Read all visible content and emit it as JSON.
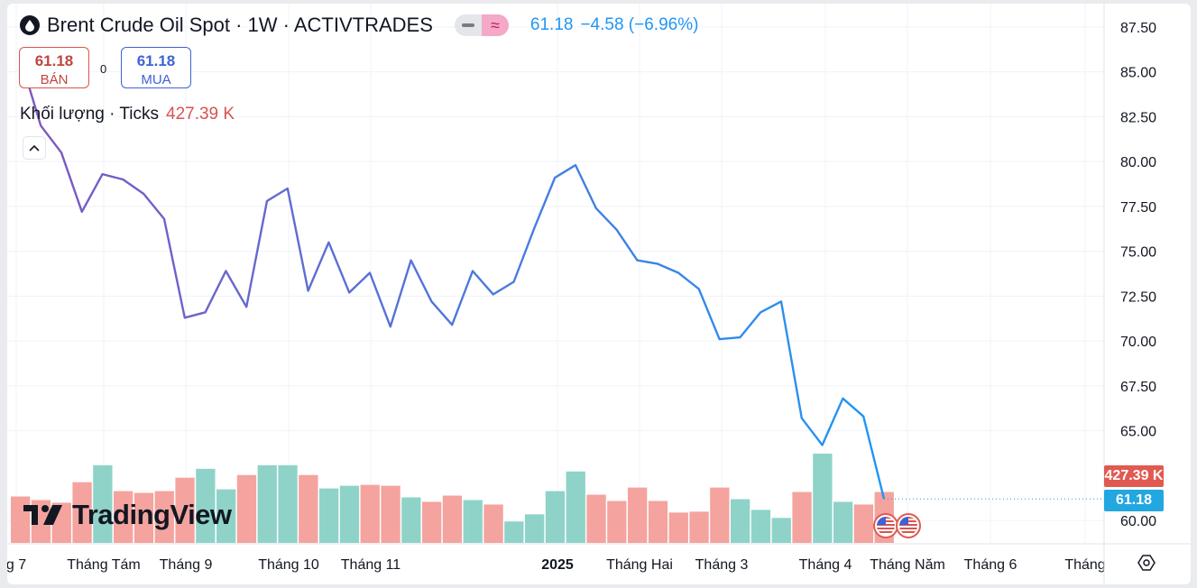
{
  "legend": {
    "title": "Brent Crude Oil Spot · 1W · ACTIVTRADES",
    "last_price": "61.18",
    "change": "−4.58 (−6.96%)"
  },
  "trade": {
    "sell_price": "61.18",
    "sell_label": "BÁN",
    "spread": "0",
    "buy_price": "61.18",
    "buy_label": "MUA"
  },
  "volume_legend": {
    "label": "Khối lượng · Ticks",
    "value": "427.39 K"
  },
  "logo_text": "TradingView",
  "price_scale_labels": {
    "volume": "427.39 K",
    "price": "61.18"
  },
  "icons": [
    "drop-icon",
    "minus-icon",
    "approx-icon",
    "chevron-up-icon",
    "tradingview-logo-icon",
    "us-flag-icon",
    "settings-icon"
  ],
  "colors": {
    "line_start": "#7e57c2",
    "line_end": "#2196f3",
    "volume_up": "#8fd3c8",
    "volume_down": "#f4a39e",
    "sell": "#d9534f",
    "buy": "#3f62d6"
  },
  "chart_data": {
    "type": "line",
    "title": "Brent Crude Oil Spot · 1W · ACTIVTRADES",
    "ylim": [
      58.7,
      88.8
    ],
    "y_ticks": [
      "87.50",
      "85.00",
      "82.50",
      "80.00",
      "77.50",
      "75.00",
      "72.50",
      "70.00",
      "67.50",
      "65.00",
      "60.00"
    ],
    "x_tick_labels": [
      "g 7",
      "Tháng Tám",
      "Tháng 9",
      "Tháng 10",
      "Tháng 11",
      "2025",
      "Tháng Hai",
      "Tháng 3",
      "Tháng 4",
      "Tháng Năm",
      "Tháng 6",
      "Tháng"
    ],
    "series": [
      {
        "values": [
          85.8,
          82.0,
          80.5,
          77.2,
          79.3,
          79.0,
          78.2,
          76.8,
          71.3,
          71.6,
          73.9,
          71.9,
          77.8,
          78.5,
          72.8,
          75.5,
          72.7,
          73.8,
          70.8,
          74.5,
          72.2,
          70.9,
          73.9,
          72.6,
          73.3,
          76.3,
          79.1,
          79.8,
          77.4,
          76.2,
          74.5,
          74.3,
          73.8,
          72.9,
          70.1,
          70.2,
          71.6,
          72.2,
          65.7,
          64.2,
          66.8,
          65.8,
          61.2
        ]
      }
    ],
    "volume": {
      "label": "Khối lượng · Ticks",
      "last": "427.39 K",
      "bars": [
        {
          "v": 0.52,
          "d": "down"
        },
        {
          "v": 0.48,
          "d": "down"
        },
        {
          "v": 0.45,
          "d": "down"
        },
        {
          "v": 0.68,
          "d": "down"
        },
        {
          "v": 0.87,
          "d": "up"
        },
        {
          "v": 0.58,
          "d": "down"
        },
        {
          "v": 0.56,
          "d": "down"
        },
        {
          "v": 0.58,
          "d": "down"
        },
        {
          "v": 0.73,
          "d": "down"
        },
        {
          "v": 0.83,
          "d": "up"
        },
        {
          "v": 0.6,
          "d": "up"
        },
        {
          "v": 0.76,
          "d": "down"
        },
        {
          "v": 0.87,
          "d": "up"
        },
        {
          "v": 0.87,
          "d": "up"
        },
        {
          "v": 0.76,
          "d": "down"
        },
        {
          "v": 0.61,
          "d": "up"
        },
        {
          "v": 0.64,
          "d": "up"
        },
        {
          "v": 0.65,
          "d": "down"
        },
        {
          "v": 0.64,
          "d": "down"
        },
        {
          "v": 0.51,
          "d": "up"
        },
        {
          "v": 0.46,
          "d": "down"
        },
        {
          "v": 0.53,
          "d": "down"
        },
        {
          "v": 0.48,
          "d": "up"
        },
        {
          "v": 0.43,
          "d": "down"
        },
        {
          "v": 0.24,
          "d": "up"
        },
        {
          "v": 0.32,
          "d": "up"
        },
        {
          "v": 0.58,
          "d": "up"
        },
        {
          "v": 0.8,
          "d": "up"
        },
        {
          "v": 0.54,
          "d": "down"
        },
        {
          "v": 0.47,
          "d": "down"
        },
        {
          "v": 0.62,
          "d": "down"
        },
        {
          "v": 0.47,
          "d": "down"
        },
        {
          "v": 0.34,
          "d": "down"
        },
        {
          "v": 0.35,
          "d": "down"
        },
        {
          "v": 0.62,
          "d": "down"
        },
        {
          "v": 0.49,
          "d": "up"
        },
        {
          "v": 0.37,
          "d": "up"
        },
        {
          "v": 0.28,
          "d": "up"
        },
        {
          "v": 0.57,
          "d": "down"
        },
        {
          "v": 1.0,
          "d": "up"
        },
        {
          "v": 0.46,
          "d": "up"
        },
        {
          "v": 0.43,
          "d": "down"
        },
        {
          "v": 0.57,
          "d": "down"
        }
      ]
    },
    "grid": true
  }
}
